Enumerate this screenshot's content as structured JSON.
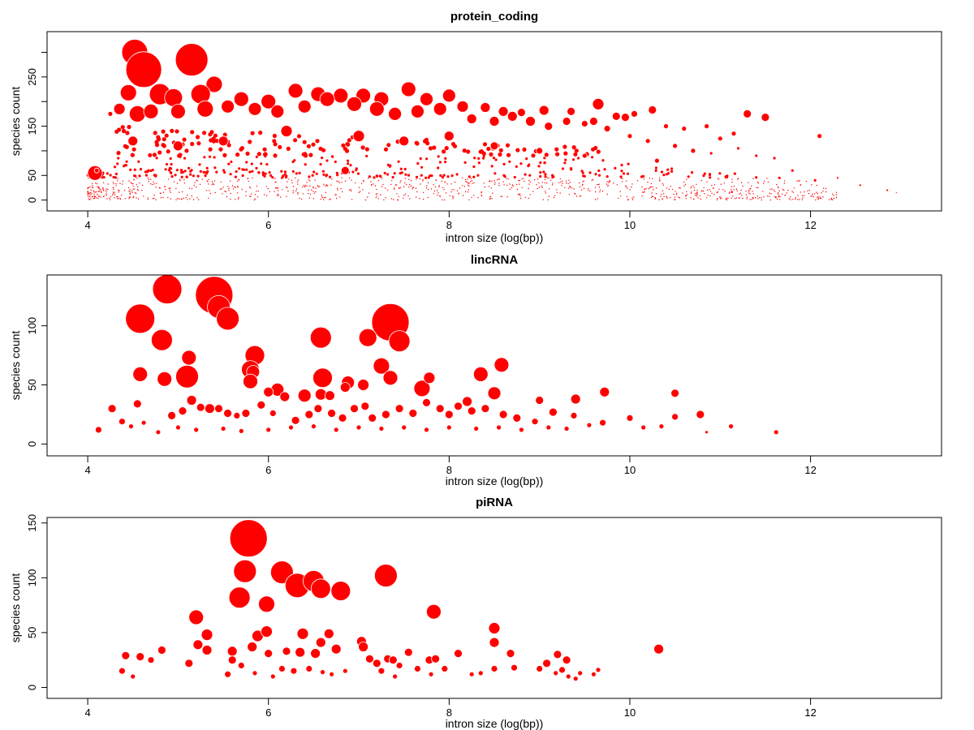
{
  "chart_data": [
    {
      "type": "scatter",
      "title": "protein_coding",
      "xlabel": "intron size (log(bp))",
      "ylabel": "species count",
      "xlim": [
        3.55,
        13.45
      ],
      "ylim": [
        -22,
        342
      ],
      "xticks": [
        4,
        6,
        8,
        10,
        12
      ],
      "yticks": [
        0,
        50,
        100,
        150,
        200,
        250,
        300
      ],
      "ytick_labels": [
        "0",
        "50",
        "",
        "150",
        "",
        "250",
        ""
      ],
      "grid": false,
      "legend": "none",
      "point_color": "#ff0000",
      "note": "bubble size proportional to count of genes; dense field of points, key/representative points listed",
      "points": [
        [
          4.52,
          300,
          16
        ],
        [
          4.62,
          265,
          22
        ],
        [
          5.15,
          285,
          20
        ],
        [
          5.4,
          235,
          10
        ],
        [
          4.8,
          215,
          13
        ],
        [
          4.45,
          218,
          10
        ],
        [
          4.95,
          208,
          11
        ],
        [
          5.25,
          215,
          12
        ],
        [
          5.7,
          205,
          9
        ],
        [
          6.0,
          200,
          9
        ],
        [
          6.3,
          222,
          9
        ],
        [
          6.55,
          215,
          9
        ],
        [
          6.8,
          212,
          9
        ],
        [
          7.05,
          212,
          9
        ],
        [
          7.25,
          205,
          9
        ],
        [
          7.55,
          225,
          9
        ],
        [
          7.75,
          205,
          8
        ],
        [
          8.0,
          212,
          8
        ],
        [
          8.15,
          190,
          7
        ],
        [
          8.4,
          188,
          6
        ],
        [
          8.6,
          180,
          6
        ],
        [
          8.8,
          178,
          5
        ],
        [
          9.05,
          182,
          6
        ],
        [
          9.35,
          180,
          5
        ],
        [
          9.65,
          195,
          7
        ],
        [
          9.6,
          160,
          5
        ],
        [
          9.85,
          170,
          5
        ],
        [
          9.95,
          168,
          5
        ],
        [
          10.05,
          175,
          4
        ],
        [
          10.25,
          183,
          5
        ],
        [
          11.3,
          175,
          5
        ],
        [
          11.5,
          168,
          5
        ],
        [
          12.1,
          130,
          3
        ],
        [
          4.08,
          55,
          9
        ],
        [
          4.1,
          60,
          3
        ],
        [
          4.25,
          175,
          3
        ],
        [
          4.35,
          185,
          7
        ],
        [
          4.55,
          175,
          10
        ],
        [
          4.7,
          180,
          9
        ],
        [
          5.0,
          180,
          9
        ],
        [
          5.3,
          185,
          10
        ],
        [
          5.55,
          190,
          8
        ],
        [
          5.85,
          185,
          8
        ],
        [
          6.1,
          180,
          8
        ],
        [
          6.4,
          190,
          8
        ],
        [
          6.65,
          205,
          9
        ],
        [
          6.95,
          195,
          9
        ],
        [
          7.2,
          185,
          9
        ],
        [
          7.4,
          175,
          8
        ],
        [
          7.65,
          180,
          8
        ],
        [
          7.9,
          185,
          8
        ],
        [
          8.25,
          165,
          6
        ],
        [
          8.5,
          160,
          6
        ],
        [
          8.7,
          170,
          6
        ],
        [
          8.9,
          160,
          6
        ],
        [
          9.1,
          150,
          5
        ],
        [
          9.3,
          160,
          5
        ],
        [
          9.5,
          155,
          4
        ],
        [
          9.75,
          145,
          4
        ],
        [
          10.0,
          130,
          3
        ],
        [
          10.4,
          150,
          3
        ],
        [
          10.6,
          145,
          3
        ],
        [
          10.85,
          150,
          3
        ],
        [
          11.0,
          125,
          3
        ],
        [
          11.15,
          135,
          3
        ],
        [
          10.2,
          120,
          3
        ],
        [
          10.5,
          110,
          3
        ],
        [
          10.7,
          100,
          3
        ],
        [
          10.9,
          95,
          2
        ],
        [
          11.2,
          105,
          2
        ],
        [
          11.4,
          90,
          2
        ],
        [
          11.6,
          85,
          2
        ],
        [
          11.8,
          60,
          2
        ],
        [
          12.05,
          40,
          2
        ],
        [
          12.3,
          45,
          1.5
        ],
        [
          12.55,
          30,
          1.5
        ],
        [
          12.85,
          20,
          1.5
        ],
        [
          12.95,
          15,
          1
        ],
        [
          6.85,
          60,
          5
        ],
        [
          7.0,
          130,
          7
        ],
        [
          7.5,
          120,
          6
        ],
        [
          8.0,
          130,
          6
        ],
        [
          5.5,
          120,
          6
        ],
        [
          6.2,
          140,
          7
        ],
        [
          5.0,
          110,
          6
        ],
        [
          4.5,
          120,
          6
        ],
        [
          8.5,
          110,
          5
        ],
        [
          9.0,
          100,
          4
        ],
        [
          9.5,
          90,
          3
        ],
        [
          10.3,
          80,
          3
        ]
      ]
    },
    {
      "type": "scatter",
      "title": "lincRNA",
      "xlabel": "intron size (log(bp))",
      "ylabel": "species count",
      "xlim": [
        3.55,
        13.45
      ],
      "ylim": [
        -10,
        143
      ],
      "xticks": [
        4,
        6,
        8,
        10,
        12
      ],
      "yticks": [
        0,
        50,
        100
      ],
      "ytick_labels": [
        "0",
        "50",
        "100"
      ],
      "grid": false,
      "legend": "none",
      "point_color": "#ff0000",
      "points": [
        [
          4.58,
          106,
          18
        ],
        [
          4.88,
          131,
          18
        ],
        [
          5.4,
          126,
          23
        ],
        [
          5.45,
          116,
          14
        ],
        [
          5.55,
          106,
          14
        ],
        [
          7.35,
          103,
          23
        ],
        [
          7.45,
          87,
          13
        ],
        [
          4.82,
          88,
          13
        ],
        [
          5.12,
          73,
          9
        ],
        [
          5.1,
          57,
          14
        ],
        [
          4.85,
          55,
          9
        ],
        [
          4.58,
          59,
          9
        ],
        [
          5.85,
          75,
          12
        ],
        [
          5.8,
          63,
          11
        ],
        [
          5.83,
          61,
          8
        ],
        [
          5.8,
          53,
          9
        ],
        [
          6.58,
          90,
          13
        ],
        [
          6.6,
          56,
          12
        ],
        [
          6.58,
          42,
          7
        ],
        [
          6.68,
          41,
          6
        ],
        [
          6.4,
          41,
          8
        ],
        [
          6.1,
          46,
          8
        ],
        [
          6.0,
          44,
          6
        ],
        [
          6.18,
          40,
          6
        ],
        [
          7.1,
          90,
          11
        ],
        [
          7.25,
          66,
          10
        ],
        [
          7.35,
          56,
          9
        ],
        [
          7.7,
          47,
          10
        ],
        [
          7.78,
          56,
          7
        ],
        [
          6.88,
          52,
          8
        ],
        [
          6.85,
          48,
          6
        ],
        [
          7.05,
          50,
          7
        ],
        [
          8.35,
          59,
          9
        ],
        [
          8.58,
          67,
          9
        ],
        [
          8.5,
          43,
          8
        ],
        [
          8.2,
          36,
          6
        ],
        [
          9.0,
          37,
          5
        ],
        [
          9.4,
          38,
          6
        ],
        [
          9.72,
          44,
          6
        ],
        [
          10.5,
          43,
          5
        ],
        [
          10.78,
          25,
          5
        ],
        [
          10.5,
          23,
          4
        ],
        [
          10.0,
          22,
          4
        ],
        [
          11.12,
          15,
          3
        ],
        [
          11.62,
          10,
          3
        ],
        [
          4.27,
          30,
          5
        ],
        [
          4.12,
          12,
          4
        ],
        [
          4.38,
          19,
          4
        ],
        [
          4.55,
          34,
          5
        ],
        [
          4.62,
          18,
          3
        ],
        [
          4.48,
          15,
          3
        ],
        [
          4.93,
          24,
          5
        ],
        [
          5.05,
          28,
          5
        ],
        [
          5.15,
          37,
          6
        ],
        [
          5.25,
          31,
          5
        ],
        [
          5.35,
          30,
          6
        ],
        [
          5.45,
          30,
          5
        ],
        [
          5.55,
          26,
          5
        ],
        [
          5.65,
          24,
          4
        ],
        [
          5.75,
          26,
          5
        ],
        [
          5.92,
          33,
          5
        ],
        [
          6.05,
          26,
          4
        ],
        [
          6.3,
          20,
          5
        ],
        [
          6.45,
          25,
          5
        ],
        [
          6.55,
          30,
          5
        ],
        [
          6.7,
          26,
          5
        ],
        [
          6.82,
          22,
          5
        ],
        [
          6.95,
          30,
          5
        ],
        [
          7.07,
          32,
          5
        ],
        [
          7.15,
          22,
          5
        ],
        [
          7.3,
          25,
          5
        ],
        [
          7.45,
          30,
          5
        ],
        [
          7.6,
          26,
          5
        ],
        [
          7.75,
          35,
          5
        ],
        [
          7.9,
          30,
          5
        ],
        [
          8.0,
          25,
          5
        ],
        [
          8.1,
          32,
          5
        ],
        [
          8.25,
          28,
          5
        ],
        [
          8.4,
          30,
          5
        ],
        [
          8.6,
          25,
          5
        ],
        [
          8.75,
          22,
          5
        ],
        [
          8.95,
          19,
          4
        ],
        [
          9.15,
          27,
          5
        ],
        [
          9.38,
          24,
          4
        ],
        [
          9.55,
          16,
          3
        ],
        [
          9.7,
          18,
          4
        ],
        [
          10.15,
          14,
          3
        ],
        [
          10.35,
          15,
          3
        ],
        [
          10.85,
          10,
          2
        ],
        [
          4.78,
          10,
          3
        ],
        [
          5.0,
          14,
          3
        ],
        [
          5.2,
          12,
          3
        ],
        [
          5.5,
          13,
          3
        ],
        [
          5.7,
          11,
          3
        ],
        [
          6.0,
          12,
          3
        ],
        [
          6.25,
          14,
          3
        ],
        [
          6.5,
          15,
          3
        ],
        [
          6.75,
          12,
          3
        ],
        [
          7.0,
          14,
          3
        ],
        [
          7.25,
          13,
          3
        ],
        [
          7.5,
          14,
          3
        ],
        [
          7.75,
          12,
          3
        ],
        [
          8.0,
          14,
          3
        ],
        [
          8.3,
          13,
          3
        ],
        [
          8.55,
          14,
          3
        ],
        [
          8.8,
          12,
          3
        ],
        [
          9.1,
          14,
          3
        ],
        [
          9.3,
          13,
          3
        ]
      ]
    },
    {
      "type": "scatter",
      "title": "piRNA",
      "xlabel": "intron size (log(bp))",
      "ylabel": "species count",
      "xlim": [
        3.55,
        13.45
      ],
      "ylim": [
        -10,
        155
      ],
      "xticks": [
        4,
        6,
        8,
        10,
        12
      ],
      "yticks": [
        0,
        50,
        100,
        150
      ],
      "ytick_labels": [
        "0",
        "50",
        "100",
        "150"
      ],
      "grid": false,
      "legend": "none",
      "point_color": "#ff0000",
      "points": [
        [
          5.78,
          136,
          23
        ],
        [
          5.74,
          106,
          14
        ],
        [
          5.68,
          82,
          13
        ],
        [
          6.15,
          105,
          14
        ],
        [
          6.32,
          93,
          15
        ],
        [
          6.5,
          97,
          13
        ],
        [
          6.58,
          90,
          12
        ],
        [
          6.8,
          88,
          12
        ],
        [
          7.3,
          102,
          14
        ],
        [
          5.98,
          76,
          10
        ],
        [
          7.83,
          69,
          9
        ],
        [
          5.2,
          64,
          9
        ],
        [
          5.32,
          48,
          7
        ],
        [
          5.22,
          39,
          6
        ],
        [
          5.32,
          34,
          6
        ],
        [
          5.6,
          33,
          6
        ],
        [
          5.88,
          47,
          7
        ],
        [
          5.98,
          51,
          7
        ],
        [
          5.82,
          37,
          6
        ],
        [
          6.0,
          31,
          5
        ],
        [
          6.2,
          33,
          5
        ],
        [
          6.38,
          49,
          7
        ],
        [
          6.35,
          32,
          6
        ],
        [
          6.52,
          31,
          6
        ],
        [
          6.58,
          41,
          6
        ],
        [
          6.67,
          49,
          6
        ],
        [
          6.75,
          35,
          6
        ],
        [
          7.03,
          42,
          6
        ],
        [
          7.05,
          37,
          6
        ],
        [
          7.12,
          26,
          5
        ],
        [
          7.32,
          26,
          5
        ],
        [
          7.38,
          25,
          5
        ],
        [
          7.55,
          32,
          5
        ],
        [
          7.78,
          25,
          5
        ],
        [
          7.85,
          26,
          5
        ],
        [
          8.1,
          31,
          5
        ],
        [
          8.5,
          54,
          7
        ],
        [
          8.5,
          41,
          6
        ],
        [
          8.68,
          31,
          5
        ],
        [
          8.5,
          17,
          4
        ],
        [
          8.72,
          18,
          4
        ],
        [
          9.0,
          17,
          4
        ],
        [
          9.08,
          22,
          5
        ],
        [
          9.2,
          30,
          5
        ],
        [
          9.3,
          25,
          5
        ],
        [
          9.25,
          16,
          4
        ],
        [
          9.32,
          10,
          3
        ],
        [
          9.45,
          13,
          3
        ],
        [
          9.65,
          16,
          3
        ],
        [
          10.32,
          35,
          6
        ],
        [
          4.42,
          29,
          5
        ],
        [
          4.58,
          28,
          5
        ],
        [
          4.82,
          34,
          5
        ],
        [
          4.7,
          25,
          4
        ],
        [
          4.38,
          15,
          4
        ],
        [
          4.5,
          10,
          3
        ],
        [
          5.12,
          22,
          5
        ],
        [
          5.55,
          12,
          4
        ],
        [
          5.6,
          25,
          5
        ],
        [
          5.7,
          20,
          4
        ],
        [
          5.85,
          13,
          3
        ],
        [
          6.05,
          10,
          3
        ],
        [
          6.15,
          17,
          4
        ],
        [
          6.28,
          15,
          4
        ],
        [
          6.45,
          17,
          4
        ],
        [
          6.6,
          14,
          3
        ],
        [
          6.7,
          12,
          3
        ],
        [
          6.85,
          15,
          3
        ],
        [
          7.2,
          22,
          5
        ],
        [
          7.25,
          15,
          4
        ],
        [
          7.4,
          10,
          3
        ],
        [
          7.45,
          20,
          4
        ],
        [
          7.65,
          17,
          4
        ],
        [
          7.8,
          12,
          3
        ],
        [
          7.95,
          17,
          4
        ],
        [
          8.25,
          12,
          3
        ],
        [
          8.35,
          13,
          3
        ],
        [
          9.18,
          13,
          3
        ],
        [
          9.4,
          8,
          3
        ],
        [
          9.6,
          12,
          3
        ]
      ]
    }
  ]
}
